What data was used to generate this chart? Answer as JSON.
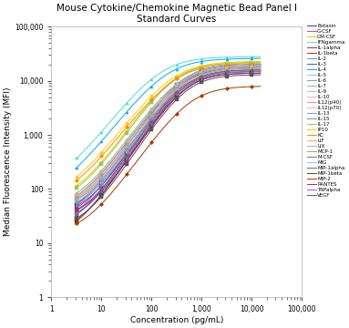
{
  "title": "Mouse Cytokine/Chemokine Magnetic Bead Panel I\nStandard Curves",
  "xlabel": "Concentration (pg/mL)",
  "ylabel": "Median Fluorescence Intensity (MFI)",
  "xmin": 1,
  "xmax": 100000,
  "ymin": 1,
  "ymax": 100000,
  "background_color": "#ffffff",
  "cytokines": [
    {
      "name": "Eotaxin",
      "color": "#3333aa",
      "marker": "s",
      "ymin": 30,
      "ymax": 20000,
      "ec50": 400,
      "hill": 1.4
    },
    {
      "name": "G-CSF",
      "color": "#cc44cc",
      "marker": "D",
      "ymin": 32,
      "ymax": 20000,
      "ec50": 500,
      "hill": 1.4
    },
    {
      "name": "GM-CSF",
      "color": "#ddcc00",
      "marker": "o",
      "ymin": 55,
      "ymax": 22000,
      "ec50": 300,
      "hill": 1.3
    },
    {
      "name": "IFNgamma",
      "color": "#44dddd",
      "marker": "^",
      "ymin": 100,
      "ymax": 28000,
      "ec50": 150,
      "hill": 1.2
    },
    {
      "name": "IL-1alpha",
      "color": "#aa2266",
      "marker": "s",
      "ymin": 28,
      "ymax": 18000,
      "ec50": 450,
      "hill": 1.4
    },
    {
      "name": "IL-1beta",
      "color": "#cc2200",
      "marker": "s",
      "ymin": 12,
      "ymax": 16000,
      "ec50": 500,
      "hill": 1.4
    },
    {
      "name": "IL-2",
      "color": "#6688ff",
      "marker": "D",
      "ymin": 20,
      "ymax": 20000,
      "ec50": 450,
      "hill": 1.4
    },
    {
      "name": "IL-3",
      "color": "#4455bb",
      "marker": "D",
      "ymin": 18,
      "ymax": 18000,
      "ec50": 480,
      "hill": 1.4
    },
    {
      "name": "IL-4",
      "color": "#00aaee",
      "marker": "^",
      "ymin": 70,
      "ymax": 26000,
      "ec50": 200,
      "hill": 1.2
    },
    {
      "name": "IL-5",
      "color": "#aabbdd",
      "marker": "o",
      "ymin": 45,
      "ymax": 20000,
      "ec50": 380,
      "hill": 1.3
    },
    {
      "name": "IL-6",
      "color": "#8899bb",
      "marker": "o",
      "ymin": 40,
      "ymax": 19000,
      "ec50": 400,
      "hill": 1.3
    },
    {
      "name": "IL-7",
      "color": "#88bb88",
      "marker": "s",
      "ymin": 38,
      "ymax": 17000,
      "ec50": 420,
      "hill": 1.3
    },
    {
      "name": "IL-9",
      "color": "#aaccaa",
      "marker": "^",
      "ymin": 35,
      "ymax": 16000,
      "ec50": 440,
      "hill": 1.3
    },
    {
      "name": "IL-10",
      "color": "#ffaacc",
      "marker": "D",
      "ymin": 35,
      "ymax": 17000,
      "ec50": 430,
      "hill": 1.3
    },
    {
      "name": "IL12(p40)",
      "color": "#dd88bb",
      "marker": "s",
      "ymin": 36,
      "ymax": 16000,
      "ec50": 440,
      "hill": 1.3
    },
    {
      "name": "IL12(p70)",
      "color": "#ddbbaa",
      "marker": "o",
      "ymin": 33,
      "ymax": 15000,
      "ec50": 460,
      "hill": 1.3
    },
    {
      "name": "IL-13",
      "color": "#7799cc",
      "marker": "D",
      "ymin": 30,
      "ymax": 16000,
      "ec50": 450,
      "hill": 1.3
    },
    {
      "name": "IL-15",
      "color": "#44aaaa",
      "marker": "^",
      "ymin": 28,
      "ymax": 15000,
      "ec50": 470,
      "hill": 1.3
    },
    {
      "name": "IL-17",
      "color": "#99cc44",
      "marker": "s",
      "ymin": 50,
      "ymax": 22000,
      "ec50": 320,
      "hill": 1.3
    },
    {
      "name": "IP10",
      "color": "#ffcc00",
      "marker": "o",
      "ymin": 60,
      "ymax": 23000,
      "ec50": 280,
      "hill": 1.2
    },
    {
      "name": "KC",
      "color": "#ff8800",
      "marker": "D",
      "ymin": 55,
      "ymax": 21000,
      "ec50": 300,
      "hill": 1.2
    },
    {
      "name": "LIF",
      "color": "#ffaa55",
      "marker": "s",
      "ymin": 40,
      "ymax": 18000,
      "ec50": 380,
      "hill": 1.3
    },
    {
      "name": "LIX",
      "color": "#aaaaaa",
      "marker": "^",
      "ymin": 35,
      "ymax": 17000,
      "ec50": 400,
      "hill": 1.3
    },
    {
      "name": "MCP-1",
      "color": "#99aa77",
      "marker": "D",
      "ymin": 38,
      "ymax": 18000,
      "ec50": 390,
      "hill": 1.3
    },
    {
      "name": "M-CSF",
      "color": "#777766",
      "marker": "s",
      "ymin": 22,
      "ymax": 15000,
      "ec50": 460,
      "hill": 1.4
    },
    {
      "name": "MIG",
      "color": "#99bbdd",
      "marker": "^",
      "ymin": 44,
      "ymax": 19000,
      "ec50": 370,
      "hill": 1.3
    },
    {
      "name": "MIP-1alpha",
      "color": "#666677",
      "marker": "D",
      "ymin": 24,
      "ymax": 16000,
      "ec50": 450,
      "hill": 1.4
    },
    {
      "name": "MIP-1beta",
      "color": "#444444",
      "marker": "s",
      "ymin": 14,
      "ymax": 14000,
      "ec50": 470,
      "hill": 1.4
    },
    {
      "name": "MIP-2",
      "color": "#aa3300",
      "marker": "D",
      "ymin": 14,
      "ymax": 8000,
      "ec50": 600,
      "hill": 1.3
    },
    {
      "name": "RANTES",
      "color": "#cc1177",
      "marker": "o",
      "ymin": 30,
      "ymax": 14000,
      "ec50": 490,
      "hill": 1.4
    },
    {
      "name": "TNFalpha",
      "color": "#8866cc",
      "marker": "^",
      "ymin": 20,
      "ymax": 15000,
      "ec50": 460,
      "hill": 1.4
    },
    {
      "name": "VEGF",
      "color": "#555555",
      "marker": "s",
      "ymin": 18,
      "ymax": 13000,
      "ec50": 500,
      "hill": 1.4
    }
  ]
}
